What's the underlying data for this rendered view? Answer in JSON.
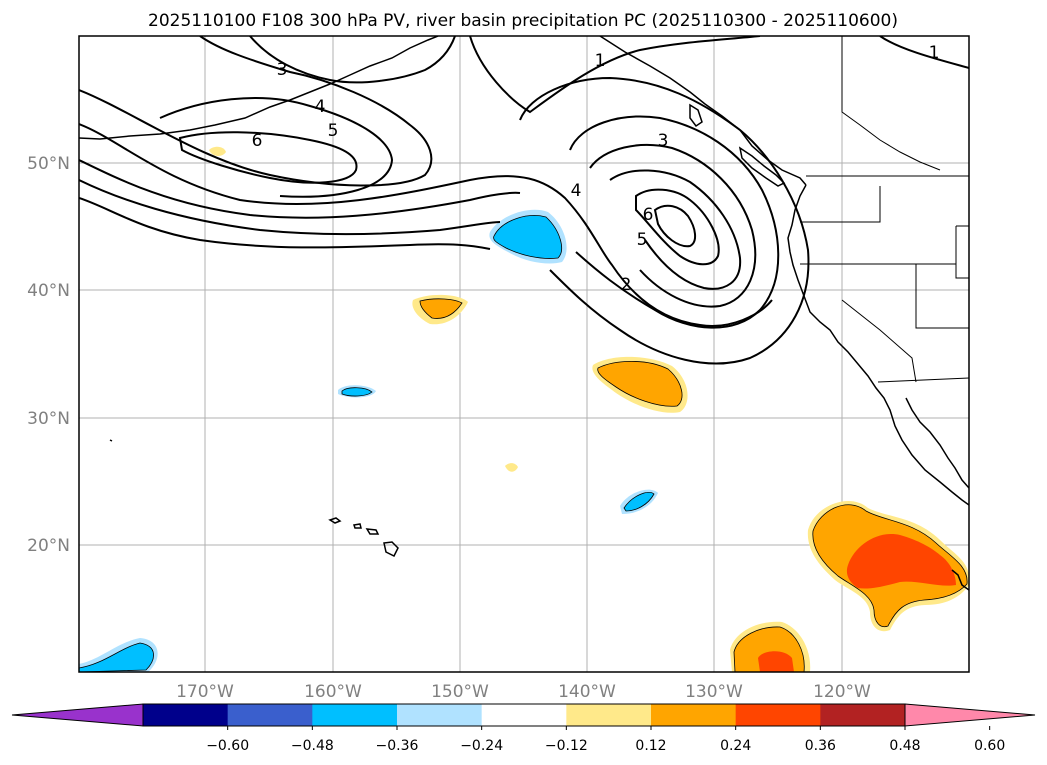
{
  "title": "2025110100 F108 300 hPa PV, river basin precipitation PC (2025110300 - 2025110600)",
  "lat_labels": [
    "50°N",
    "40°N",
    "30°N",
    "20°N"
  ],
  "lon_labels": [
    "170°W",
    "160°W",
    "150°W",
    "140°W",
    "130°W",
    "120°W"
  ],
  "colorbar": {
    "ticks": [
      "−0.60",
      "−0.48",
      "−0.36",
      "−0.24",
      "−0.12",
      "0.12",
      "0.24",
      "0.36",
      "0.48",
      "0.60"
    ],
    "colors": [
      "#9932cc",
      "#00008b",
      "#3a5fcd",
      "#00bfff",
      "#b0e2ff",
      "#ffffff",
      "#ffe98a",
      "#ffa500",
      "#ff4500",
      "#b22222",
      "#ff88aa"
    ]
  },
  "contour_labels": [
    "3",
    "4",
    "5",
    "6",
    "1",
    "3",
    "4",
    "6",
    "5",
    "2",
    "1"
  ],
  "colors": {
    "positive_light": "#ffe98a",
    "positive_mid": "#ffa500",
    "positive_strong": "#ff4500",
    "negative_light": "#b0e2ff",
    "negative_mid": "#00bfff"
  }
}
